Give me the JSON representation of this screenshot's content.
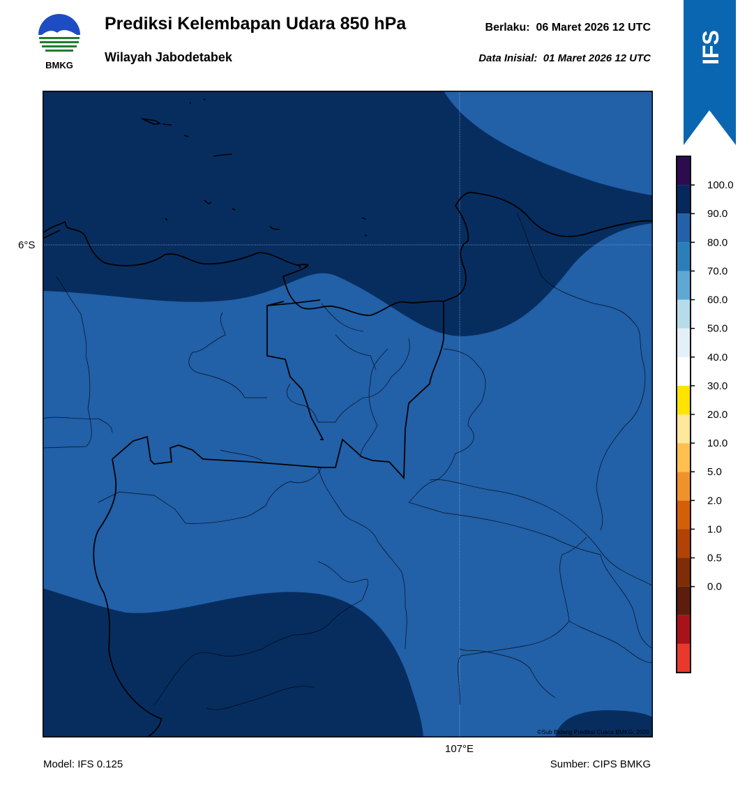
{
  "header": {
    "agency": "BMKG",
    "title": "Prediksi Kelembapan Udara 850 hPa",
    "region": "Wilayah Jabodetabek",
    "valid_prefix": "Berlaku:",
    "valid_time": "06 Maret 2026 12 UTC",
    "init_prefix": "Data Inisial:",
    "init_time": "01 Maret 2026 12 UTC",
    "model_badge": "IFS"
  },
  "map": {
    "lat_label": "6°S",
    "lon_label": "107°E",
    "copyright": "©Sub Bidang Prediksi Cuaca BMKG, 2020"
  },
  "footer": {
    "model": "Model: IFS 0.125",
    "source": "Sumber: CIPS BMKG"
  },
  "legend": {
    "ticks": [
      "100.0",
      "90.0",
      "80.0",
      "70.0",
      "60.0",
      "50.0",
      "40.0",
      "30.0",
      "20.0",
      "10.0",
      "5.0",
      "2.0",
      "1.0",
      "0.5",
      "0.0"
    ],
    "colors": [
      "#e8392c",
      "#a8131b",
      "#5c1d0c",
      "#7f2d06",
      "#b14306",
      "#d35f09",
      "#f0922a",
      "#ffc04f",
      "#ffe79b",
      "#ffe400",
      "#ffffff",
      "#e4eff8",
      "#b6dcec",
      "#5fa8d3",
      "#2b7fb9",
      "#2362a9",
      "#06285c",
      "#2d0b4f"
    ]
  },
  "colors": {
    "humid_90_100": "#072d5f",
    "humid_80_90": "#2260a8",
    "banner": "#0a66b0",
    "grid": "#9fb8d8"
  }
}
